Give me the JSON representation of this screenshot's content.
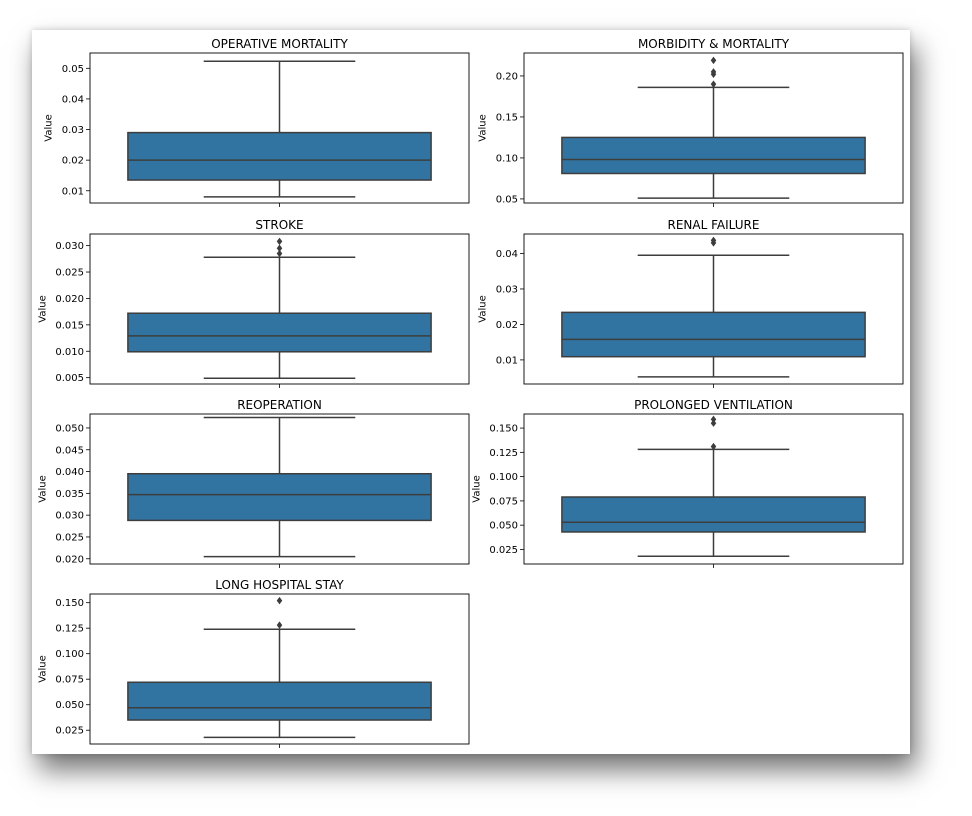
{
  "chart_data": [
    {
      "type": "box",
      "title": "OPERATIVE MORTALITY",
      "ylabel": "Value",
      "ylim": [
        0.006,
        0.055
      ],
      "yticks": [
        0.01,
        0.02,
        0.03,
        0.04,
        0.05
      ],
      "ytick_labels": [
        "0.01",
        "0.02",
        "0.03",
        "0.04",
        "0.05"
      ],
      "box": {
        "whisker_low": 0.008,
        "q1": 0.0135,
        "median": 0.02,
        "q3": 0.029,
        "whisker_high": 0.0523
      },
      "outliers": [],
      "color": "#3274a1"
    },
    {
      "type": "box",
      "title": "MORBIDITY & MORTALITY",
      "ylabel": "Value",
      "ylim": [
        0.045,
        0.228
      ],
      "yticks": [
        0.05,
        0.1,
        0.15,
        0.2
      ],
      "ytick_labels": [
        "0.05",
        "0.10",
        "0.15",
        "0.20"
      ],
      "box": {
        "whisker_low": 0.051,
        "q1": 0.081,
        "median": 0.098,
        "q3": 0.125,
        "whisker_high": 0.186
      },
      "outliers": [
        0.19,
        0.202,
        0.205,
        0.219
      ],
      "color": "#3274a1"
    },
    {
      "type": "box",
      "title": "STROKE",
      "ylabel": "Value",
      "ylim": [
        0.0038,
        0.0322
      ],
      "yticks": [
        0.005,
        0.01,
        0.015,
        0.02,
        0.025,
        0.03
      ],
      "ytick_labels": [
        "0.005",
        "0.010",
        "0.015",
        "0.020",
        "0.025",
        "0.030"
      ],
      "box": {
        "whisker_low": 0.0049,
        "q1": 0.0099,
        "median": 0.0129,
        "q3": 0.0172,
        "whisker_high": 0.0278
      },
      "outliers": [
        0.0285,
        0.0295,
        0.0308
      ],
      "color": "#3274a1"
    },
    {
      "type": "box",
      "title": "RENAL FAILURE",
      "ylabel": "Value",
      "ylim": [
        0.0032,
        0.0455
      ],
      "yticks": [
        0.01,
        0.02,
        0.03,
        0.04
      ],
      "ytick_labels": [
        "0.01",
        "0.02",
        "0.03",
        "0.04"
      ],
      "box": {
        "whisker_low": 0.0052,
        "q1": 0.0109,
        "median": 0.0158,
        "q3": 0.0234,
        "whisker_high": 0.0395
      },
      "outliers": [
        0.043,
        0.0437
      ],
      "color": "#3274a1"
    },
    {
      "type": "box",
      "title": "REOPERATION",
      "ylabel": "Value",
      "ylim": [
        0.0188,
        0.0532
      ],
      "yticks": [
        0.02,
        0.025,
        0.03,
        0.035,
        0.04,
        0.045,
        0.05
      ],
      "ytick_labels": [
        "0.020",
        "0.025",
        "0.030",
        "0.035",
        "0.040",
        "0.045",
        "0.050"
      ],
      "box": {
        "whisker_low": 0.0205,
        "q1": 0.0288,
        "median": 0.0347,
        "q3": 0.0395,
        "whisker_high": 0.0524
      },
      "outliers": [],
      "color": "#3274a1"
    },
    {
      "type": "box",
      "title": "PROLONGED VENTILATION",
      "ylabel": "Value",
      "ylim": [
        0.01,
        0.1645
      ],
      "yticks": [
        0.025,
        0.05,
        0.075,
        0.1,
        0.125,
        0.15
      ],
      "ytick_labels": [
        "0.025",
        "0.050",
        "0.075",
        "0.100",
        "0.125",
        "0.150"
      ],
      "box": {
        "whisker_low": 0.018,
        "q1": 0.043,
        "median": 0.053,
        "q3": 0.079,
        "whisker_high": 0.128
      },
      "outliers": [
        0.131,
        0.155,
        0.159
      ],
      "color": "#3274a1"
    },
    {
      "type": "box",
      "title": "LONG HOSPITAL STAY",
      "ylabel": "Value",
      "ylim": [
        0.0115,
        0.1585
      ],
      "yticks": [
        0.025,
        0.05,
        0.075,
        0.1,
        0.125,
        0.15
      ],
      "ytick_labels": [
        "0.025",
        "0.050",
        "0.075",
        "0.100",
        "0.125",
        "0.150"
      ],
      "box": {
        "whisker_low": 0.018,
        "q1": 0.035,
        "median": 0.047,
        "q3": 0.072,
        "whisker_high": 0.124
      },
      "outliers": [
        0.128,
        0.152
      ],
      "color": "#3274a1"
    }
  ]
}
